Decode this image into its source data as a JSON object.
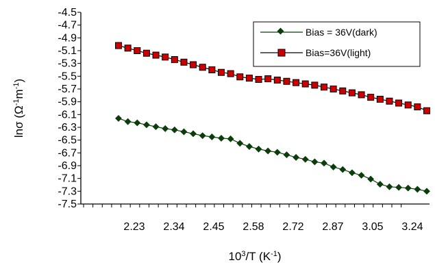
{
  "chart_data": {
    "type": "line",
    "xlabel": {
      "base": "10",
      "sup1": "3",
      "mid": "/T (K",
      "sup2": "-1",
      "end": ")"
    },
    "ylabel": {
      "pre": "ln",
      "sym": "σ",
      "open": " (Ω",
      "sup1": "-1",
      "mid": "m",
      "sup2": "-1",
      "end": ")"
    },
    "x_tick_labels": [
      "2.23",
      "2.34",
      "2.45",
      "2.58",
      "2.72",
      "2.87",
      "3.05",
      "3.24"
    ],
    "y_tick_labels": [
      "-4.5",
      "-4.7",
      "-4.9",
      "-5.1",
      "-5.3",
      "-5.5",
      "-5.7",
      "-5.9",
      "-6.1",
      "-6.3",
      "-6.5",
      "-6.7",
      "-6.9",
      "-7.1",
      "-7.3",
      "-7.5"
    ],
    "ylim": [
      -7.5,
      -4.5
    ],
    "grid": false,
    "legend_position": "top-right",
    "series": [
      {
        "name": "Bias = 36V(dark)",
        "marker": "diamond",
        "color": "#0a3d0a",
        "values": [
          -6.16,
          -6.21,
          -6.23,
          -6.26,
          -6.29,
          -6.32,
          -6.34,
          -6.37,
          -6.4,
          -6.43,
          -6.45,
          -6.47,
          -6.48,
          -6.55,
          -6.6,
          -6.64,
          -6.67,
          -6.69,
          -6.73,
          -6.77,
          -6.8,
          -6.84,
          -6.86,
          -6.92,
          -6.96,
          -7.01,
          -7.05,
          -7.11,
          -7.19,
          -7.23,
          -7.24,
          -7.25,
          -7.27,
          -7.3
        ]
      },
      {
        "name": "Bias=36V(light)",
        "marker": "square",
        "color": "#cc0000",
        "values": [
          -5.02,
          -5.06,
          -5.1,
          -5.14,
          -5.17,
          -5.2,
          -5.24,
          -5.28,
          -5.32,
          -5.36,
          -5.4,
          -5.44,
          -5.46,
          -5.51,
          -5.53,
          -5.55,
          -5.54,
          -5.56,
          -5.58,
          -5.6,
          -5.62,
          -5.64,
          -5.67,
          -5.7,
          -5.73,
          -5.76,
          -5.79,
          -5.83,
          -5.86,
          -5.89,
          -5.92,
          -5.95,
          -5.98,
          -6.04
        ]
      }
    ]
  }
}
